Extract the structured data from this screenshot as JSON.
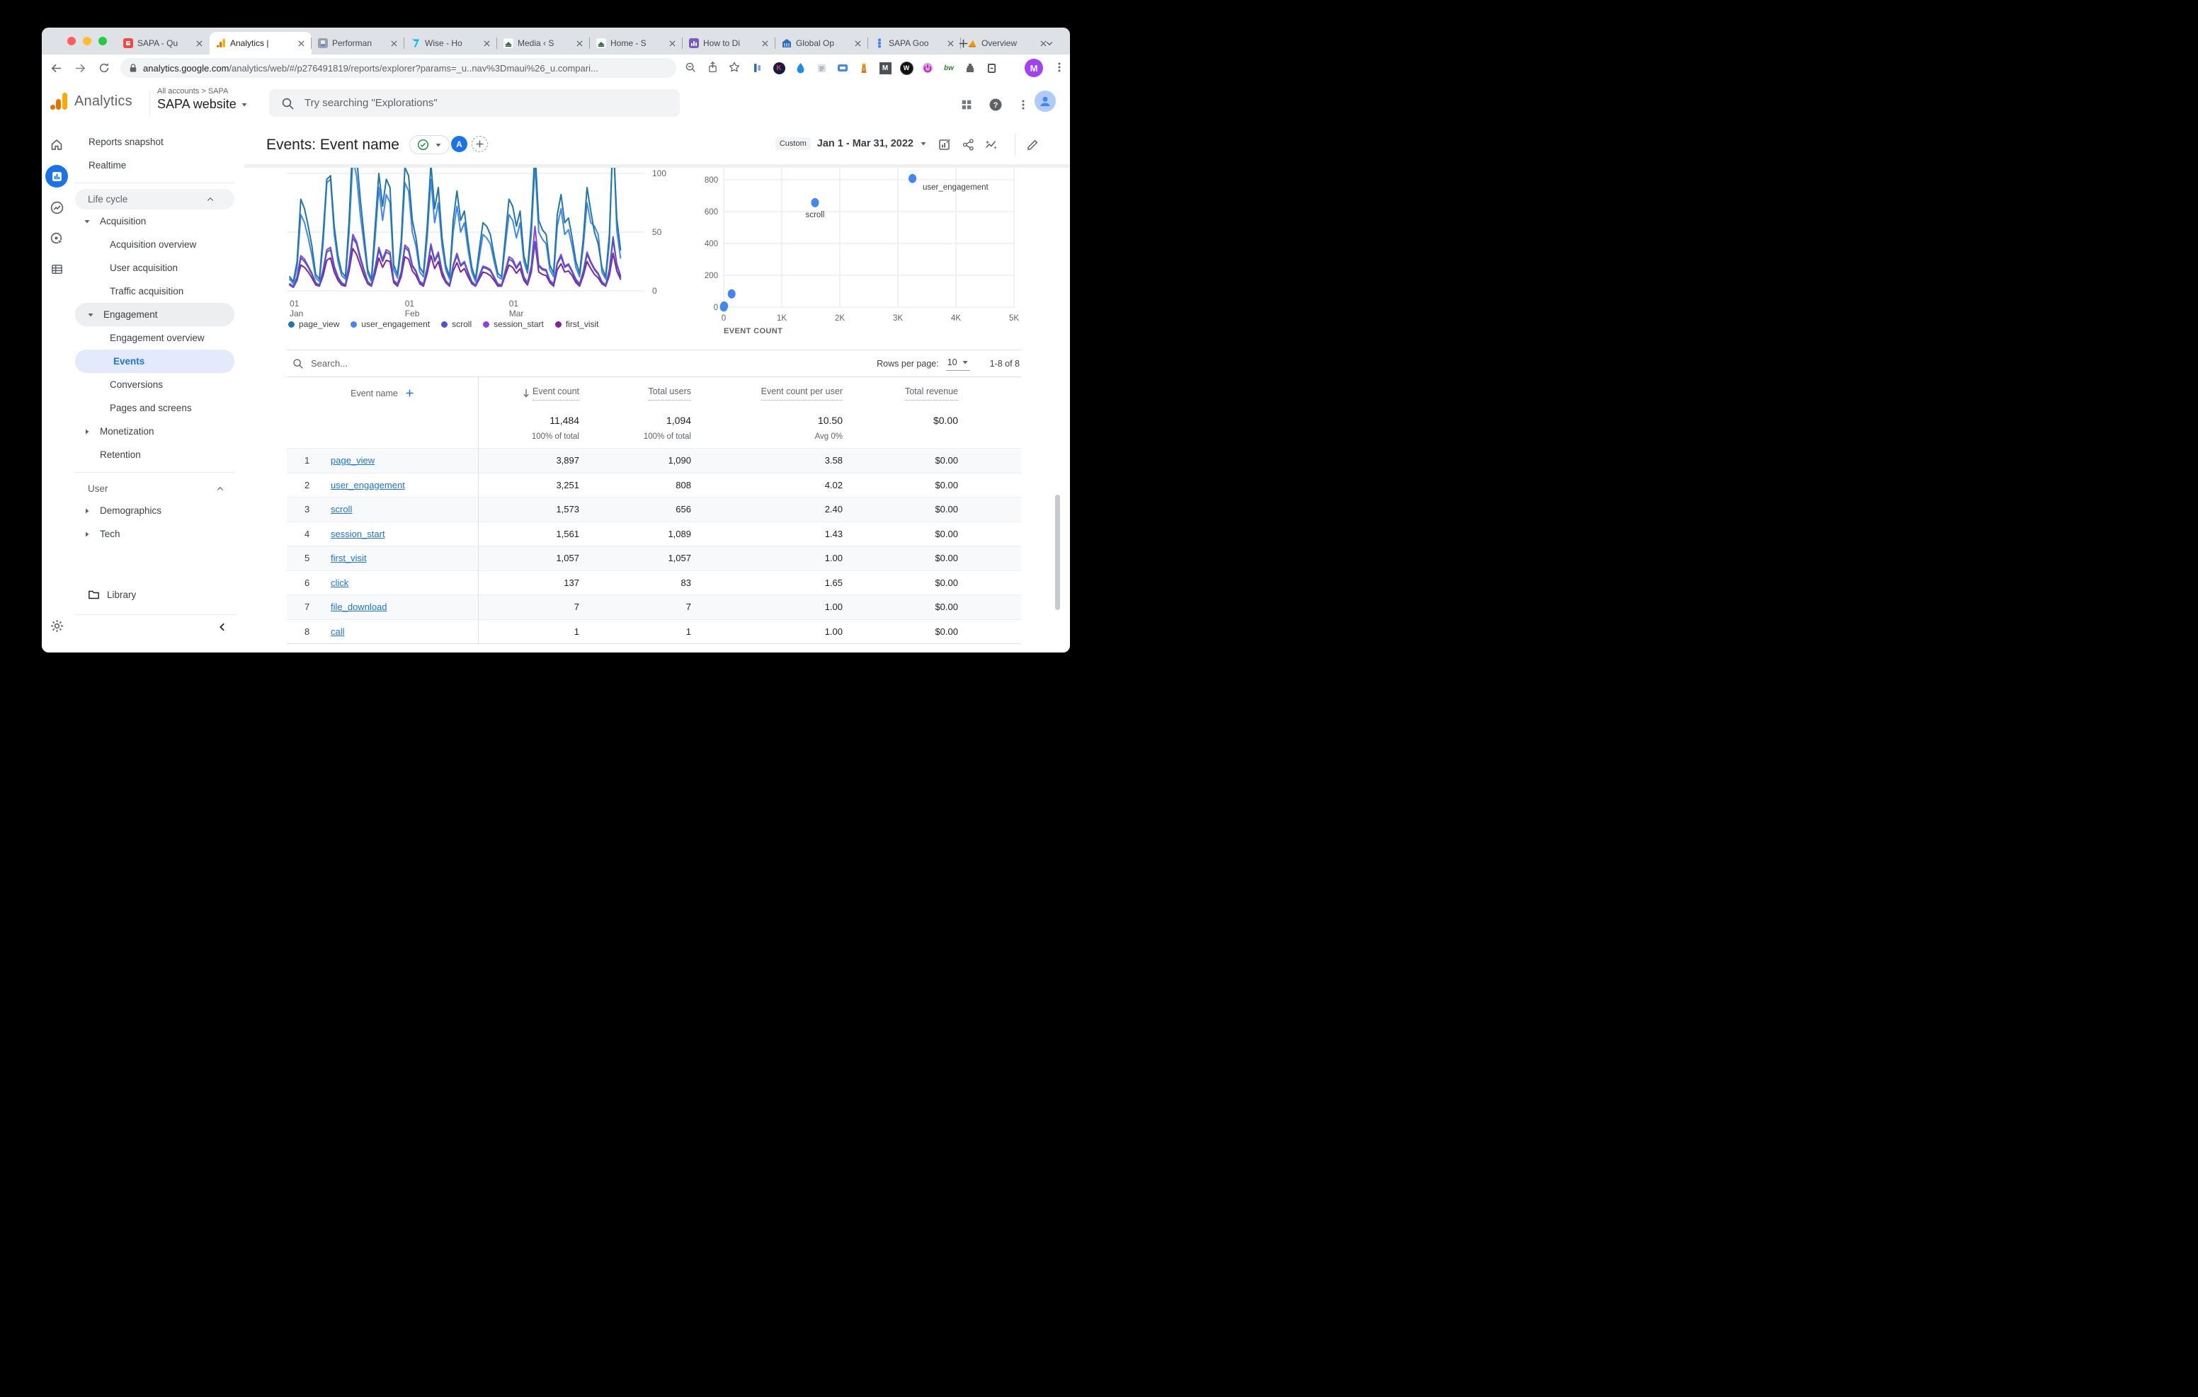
{
  "window": {
    "traffic_lights": [
      "#ff5f57",
      "#febc2e",
      "#28c840"
    ]
  },
  "browser": {
    "tabs": [
      {
        "title": "SAPA - Qu",
        "favicon": "sapa-red",
        "active": false
      },
      {
        "title": "Analytics |",
        "favicon": "ga",
        "active": true
      },
      {
        "title": "Performan",
        "favicon": "grey-app",
        "active": false
      },
      {
        "title": "Wise - Ho",
        "favicon": "wise",
        "active": false
      },
      {
        "title": "Media ‹ S",
        "favicon": "sapa-logo",
        "active": false
      },
      {
        "title": "Home - S",
        "favicon": "sapa-logo",
        "active": false
      },
      {
        "title": "How to Di",
        "favicon": "purple-chart",
        "active": false
      },
      {
        "title": "Global Op",
        "favicon": "blue-bank",
        "active": false
      },
      {
        "title": "SAPA Goo",
        "favicon": "blue-dots",
        "active": false
      },
      {
        "title": "Overview",
        "favicon": "orange-ga",
        "active": false
      }
    ],
    "url_domain": "analytics.google.com",
    "url_path": "/analytics/web/#/p276491819/reports/explorer?params=_u..nav%3Dmaui%26_u.compari...",
    "profile_initial": "M",
    "extensions": [
      {
        "name": "panels",
        "letter": ""
      },
      {
        "name": "keeper",
        "letter": "K"
      },
      {
        "name": "drop",
        "letter": ""
      },
      {
        "name": "notes",
        "letter": ""
      },
      {
        "name": "shortcut",
        "letter": ""
      },
      {
        "name": "lighthouse",
        "letter": ""
      },
      {
        "name": "monday",
        "letter": "M"
      },
      {
        "name": "wayback",
        "letter": "W"
      },
      {
        "name": "power",
        "letter": ""
      },
      {
        "name": "bitwarden",
        "letter": "bw"
      },
      {
        "name": "puzzle",
        "letter": ""
      },
      {
        "name": "reader",
        "letter": ""
      }
    ]
  },
  "app_header": {
    "logo_text": "Analytics",
    "breadcrumb": "All accounts > SAPA",
    "property": "SAPA website",
    "search_placeholder": "Try searching \"Explorations\""
  },
  "report": {
    "title": "Events: Event name",
    "variant": "A",
    "date_label": "Custom",
    "date_range": "Jan 1 - Mar 31, 2022"
  },
  "sidebar": {
    "items": [
      {
        "label": "Reports snapshot",
        "type": "top"
      },
      {
        "label": "Realtime",
        "type": "top"
      },
      {
        "type": "divider"
      },
      {
        "label": "Life cycle",
        "type": "section",
        "pill": true,
        "chevron": "up"
      },
      {
        "label": "Acquisition",
        "type": "parent",
        "caret": "down"
      },
      {
        "label": "Acquisition overview",
        "type": "child"
      },
      {
        "label": "User acquisition",
        "type": "child"
      },
      {
        "label": "Traffic acquisition",
        "type": "child"
      },
      {
        "label": "Engagement",
        "type": "parent",
        "caret": "down",
        "pill": true
      },
      {
        "label": "Engagement overview",
        "type": "child"
      },
      {
        "label": "Events",
        "type": "child",
        "selected": true
      },
      {
        "label": "Conversions",
        "type": "child"
      },
      {
        "label": "Pages and screens",
        "type": "child"
      },
      {
        "label": "Monetization",
        "type": "parent",
        "caret": "right"
      },
      {
        "label": "Retention",
        "type": "parent-noicon"
      },
      {
        "type": "divider"
      },
      {
        "label": "User",
        "type": "section",
        "chevron": "up"
      },
      {
        "label": "Demographics",
        "type": "parent",
        "caret": "right"
      },
      {
        "label": "Tech",
        "type": "parent",
        "caret": "right"
      }
    ],
    "library_label": "Library"
  },
  "chart_data": [
    {
      "type": "line",
      "x_start": "Jan 1, 2022",
      "x_end": "Mar 31, 2022",
      "x_tick_labels": [
        {
          "top": "01",
          "bottom": "Jan",
          "day": 0
        },
        {
          "top": "01",
          "bottom": "Feb",
          "day": 31
        },
        {
          "top": "01",
          "bottom": "Mar",
          "day": 59
        }
      ],
      "y_ticks": [
        0,
        50,
        100
      ],
      "ylim": [
        0,
        107
      ],
      "grid": true,
      "legend_position": "bottom",
      "series": [
        {
          "name": "page_view",
          "color": "#1f77a8",
          "values": [
            12,
            8,
            25,
            78,
            70,
            55,
            38,
            14,
            10,
            48,
            95,
            98,
            55,
            30,
            16,
            12,
            60,
            130,
            115,
            78,
            48,
            18,
            10,
            55,
            100,
            72,
            95,
            88,
            22,
            14,
            42,
            105,
            98,
            60,
            45,
            20,
            15,
            55,
            108,
            70,
            88,
            45,
            22,
            12,
            60,
            85,
            60,
            68,
            42,
            20,
            10,
            35,
            58,
            55,
            48,
            30,
            15,
            12,
            45,
            78,
            72,
            55,
            68,
            30,
            18,
            58,
            120,
            60,
            52,
            48,
            22,
            15,
            65,
            82,
            58,
            62,
            45,
            25,
            15,
            45,
            88,
            68,
            50,
            40,
            20,
            12,
            48,
            132,
            62,
            35
          ]
        },
        {
          "name": "user_engagement",
          "color": "#4285f4",
          "values": [
            10,
            6,
            20,
            65,
            58,
            45,
            30,
            11,
            8,
            40,
            92,
            95,
            48,
            25,
            13,
            10,
            50,
            112,
            98,
            65,
            40,
            15,
            8,
            45,
            88,
            60,
            82,
            75,
            18,
            11,
            35,
            92,
            85,
            50,
            38,
            16,
            12,
            45,
            95,
            58,
            75,
            38,
            18,
            10,
            50,
            72,
            50,
            58,
            35,
            16,
            8,
            28,
            48,
            45,
            40,
            25,
            12,
            10,
            38,
            65,
            60,
            45,
            58,
            25,
            15,
            48,
            108,
            50,
            44,
            40,
            18,
            12,
            55,
            70,
            48,
            52,
            38,
            20,
            12,
            38,
            75,
            58,
            55,
            48,
            16,
            10,
            40,
            138,
            52,
            28
          ]
        },
        {
          "name": "scroll",
          "color": "#4b57c8",
          "values": [
            5,
            3,
            10,
            28,
            25,
            20,
            14,
            6,
            4,
            17,
            33,
            35,
            20,
            11,
            6,
            5,
            21,
            45,
            40,
            27,
            17,
            7,
            4,
            19,
            35,
            25,
            33,
            31,
            8,
            5,
            15,
            37,
            34,
            21,
            16,
            7,
            5,
            19,
            38,
            25,
            31,
            16,
            8,
            4,
            21,
            30,
            21,
            24,
            15,
            7,
            4,
            12,
            20,
            19,
            17,
            11,
            5,
            4,
            16,
            27,
            25,
            19,
            24,
            11,
            6,
            20,
            42,
            21,
            18,
            17,
            8,
            5,
            23,
            29,
            20,
            22,
            16,
            9,
            5,
            16,
            31,
            24,
            18,
            14,
            7,
            4,
            17,
            46,
            22,
            12
          ]
        },
        {
          "name": "session_start",
          "color": "#9142db",
          "values": [
            6,
            4,
            12,
            30,
            27,
            21,
            15,
            7,
            5,
            18,
            35,
            37,
            21,
            12,
            7,
            5,
            23,
            48,
            42,
            29,
            18,
            8,
            5,
            20,
            37,
            27,
            35,
            33,
            9,
            6,
            16,
            39,
            36,
            22,
            17,
            8,
            6,
            20,
            40,
            26,
            33,
            17,
            9,
            5,
            22,
            32,
            22,
            25,
            16,
            8,
            5,
            13,
            21,
            20,
            18,
            12,
            6,
            5,
            17,
            29,
            27,
            20,
            25,
            12,
            7,
            21,
            55,
            22,
            19,
            18,
            9,
            6,
            24,
            31,
            21,
            23,
            17,
            10,
            6,
            17,
            33,
            25,
            19,
            15,
            8,
            5,
            18,
            43,
            23,
            13
          ]
        },
        {
          "name": "first_visit",
          "color": "#871f9e",
          "values": [
            5,
            3,
            9,
            22,
            20,
            16,
            11,
            5,
            4,
            13,
            26,
            28,
            16,
            9,
            5,
            4,
            17,
            36,
            31,
            22,
            13,
            6,
            4,
            15,
            28,
            20,
            26,
            25,
            7,
            4,
            12,
            29,
            27,
            17,
            13,
            6,
            4,
            15,
            30,
            19,
            25,
            13,
            7,
            4,
            17,
            24,
            16,
            19,
            12,
            6,
            4,
            10,
            16,
            15,
            13,
            9,
            4,
            4,
            13,
            22,
            20,
            15,
            19,
            9,
            5,
            16,
            41,
            16,
            14,
            13,
            7,
            4,
            18,
            23,
            16,
            17,
            13,
            7,
            4,
            13,
            25,
            19,
            14,
            11,
            6,
            4,
            13,
            32,
            17,
            10
          ]
        }
      ]
    },
    {
      "type": "scatter",
      "xlabel": "EVENT COUNT",
      "x_ticks": [
        "0",
        "1K",
        "2K",
        "3K",
        "4K",
        "5K"
      ],
      "xlim": [
        0,
        5000
      ],
      "y_ticks": [
        0,
        200,
        400,
        600,
        800
      ],
      "ylim_visible": [
        0,
        875
      ],
      "grid": true,
      "point_color": "#4285f4",
      "points": [
        {
          "label": "page_view",
          "x": 3897,
          "y": 1090,
          "show_label": false
        },
        {
          "label": "user_engagement",
          "x": 3251,
          "y": 808,
          "show_label": true
        },
        {
          "label": "scroll",
          "x": 1573,
          "y": 656,
          "show_label": true
        },
        {
          "label": "session_start",
          "x": 1561,
          "y": 1089,
          "show_label": false
        },
        {
          "label": "first_visit",
          "x": 1057,
          "y": 1057,
          "show_label": false
        },
        {
          "label": "click",
          "x": 137,
          "y": 83,
          "show_label": false
        },
        {
          "label": "file_download",
          "x": 7,
          "y": 7,
          "show_label": false
        },
        {
          "label": "call",
          "x": 1,
          "y": 1,
          "show_label": false
        }
      ]
    }
  ],
  "table": {
    "search_placeholder": "Search...",
    "rows_per_page_label": "Rows per page:",
    "rows_per_page_value": "10",
    "pagination": "1-8 of 8",
    "columns": {
      "dimension": "Event name",
      "metrics": [
        "Event count",
        "Total users",
        "Event count per user",
        "Total revenue"
      ]
    },
    "totals": {
      "values": [
        "11,484",
        "1,094",
        "10.50",
        "$0.00"
      ],
      "subs": [
        "100% of total",
        "100% of total",
        "Avg 0%",
        ""
      ]
    },
    "rows": [
      {
        "index": "1",
        "name": "page_view",
        "values": [
          "3,897",
          "1,090",
          "3.58",
          "$0.00"
        ]
      },
      {
        "index": "2",
        "name": "user_engagement",
        "values": [
          "3,251",
          "808",
          "4.02",
          "$0.00"
        ]
      },
      {
        "index": "3",
        "name": "scroll",
        "values": [
          "1,573",
          "656",
          "2.40",
          "$0.00"
        ]
      },
      {
        "index": "4",
        "name": "session_start",
        "values": [
          "1,561",
          "1,089",
          "1.43",
          "$0.00"
        ]
      },
      {
        "index": "5",
        "name": "first_visit",
        "values": [
          "1,057",
          "1,057",
          "1.00",
          "$0.00"
        ]
      },
      {
        "index": "6",
        "name": "click",
        "values": [
          "137",
          "83",
          "1.65",
          "$0.00"
        ]
      },
      {
        "index": "7",
        "name": "file_download",
        "values": [
          "7",
          "7",
          "1.00",
          "$0.00"
        ]
      },
      {
        "index": "8",
        "name": "call",
        "values": [
          "1",
          "1",
          "1.00",
          "$0.00"
        ]
      }
    ]
  }
}
